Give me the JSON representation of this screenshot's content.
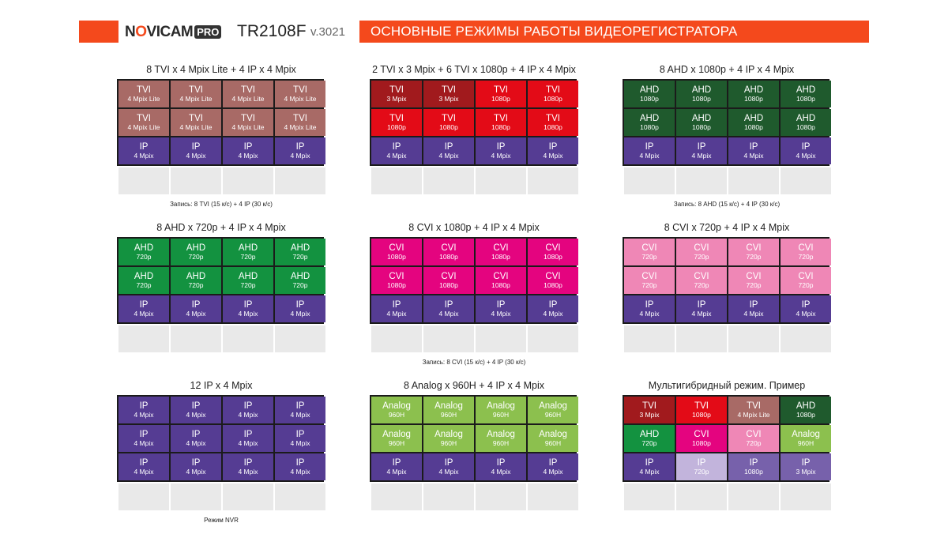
{
  "header": {
    "logo_prefix": "N",
    "logo_o": "O",
    "logo_rest": "VICAM",
    "logo_pro": "PRO",
    "model": "TR2108F",
    "version": "v.3021",
    "title": "ОСНОВНЫЕ РЕЖИМЫ РАБОТЫ ВИДЕОРЕГИСТРАТОРА"
  },
  "colors": {
    "accent": "#f4491c",
    "tvi_lite": "#a86a66",
    "tvi_red": "#e30b17",
    "tvi_dark": "#a11a1d",
    "ahd_dark": "#1f5a2d",
    "ahd_green": "#139240",
    "cvi_magenta": "#e4047f",
    "cvi_pink": "#ef87b6",
    "ip": "#553c93",
    "ip_light": "#c2b4dc",
    "ip_mid": "#7761ab",
    "analog": "#8cc04e",
    "empty": "#e9e9e9"
  },
  "panels": [
    {
      "title": "8 TVI x 4 Mpix Lite + 4 IP x 4 Mpix",
      "note": "Запись: 8 TVI (15 к/с) + 4 IP (30 к/с)",
      "rows": [
        [
          {
            "a": "TVI",
            "b": "4 Mpix Lite",
            "c": "tvi_lite"
          },
          {
            "a": "TVI",
            "b": "4 Mpix Lite",
            "c": "tvi_lite"
          },
          {
            "a": "TVI",
            "b": "4 Mpix Lite",
            "c": "tvi_lite"
          },
          {
            "a": "TVI",
            "b": "4 Mpix Lite",
            "c": "tvi_lite"
          }
        ],
        [
          {
            "a": "TVI",
            "b": "4 Mpix Lite",
            "c": "tvi_lite"
          },
          {
            "a": "TVI",
            "b": "4 Mpix Lite",
            "c": "tvi_lite"
          },
          {
            "a": "TVI",
            "b": "4 Mpix Lite",
            "c": "tvi_lite"
          },
          {
            "a": "TVI",
            "b": "4 Mpix Lite",
            "c": "tvi_lite"
          }
        ],
        [
          {
            "a": "IP",
            "b": "4 Mpix",
            "c": "ip"
          },
          {
            "a": "IP",
            "b": "4 Mpix",
            "c": "ip"
          },
          {
            "a": "IP",
            "b": "4 Mpix",
            "c": "ip"
          },
          {
            "a": "IP",
            "b": "4 Mpix",
            "c": "ip"
          }
        ]
      ]
    },
    {
      "title": "2 TVI x 3 Mpix + 6 TVI x 1080p + 4 IP x 4 Mpix",
      "note": "",
      "rows": [
        [
          {
            "a": "TVI",
            "b": "3 Mpix",
            "c": "tvi_dark"
          },
          {
            "a": "TVI",
            "b": "3 Mpix",
            "c": "tvi_dark"
          },
          {
            "a": "TVI",
            "b": "1080p",
            "c": "tvi_red"
          },
          {
            "a": "TVI",
            "b": "1080p",
            "c": "tvi_red"
          }
        ],
        [
          {
            "a": "TVI",
            "b": "1080p",
            "c": "tvi_red"
          },
          {
            "a": "TVI",
            "b": "1080p",
            "c": "tvi_red"
          },
          {
            "a": "TVI",
            "b": "1080p",
            "c": "tvi_red"
          },
          {
            "a": "TVI",
            "b": "1080p",
            "c": "tvi_red"
          }
        ],
        [
          {
            "a": "IP",
            "b": "4 Mpix",
            "c": "ip"
          },
          {
            "a": "IP",
            "b": "4 Mpix",
            "c": "ip"
          },
          {
            "a": "IP",
            "b": "4 Mpix",
            "c": "ip"
          },
          {
            "a": "IP",
            "b": "4 Mpix",
            "c": "ip"
          }
        ]
      ]
    },
    {
      "title": "8 AHD x 1080p + 4 IP x 4 Mpix",
      "note": "Запись: 8 AHD (15 к/с) + 4 IP (30 к/с)",
      "rows": [
        [
          {
            "a": "AHD",
            "b": "1080p",
            "c": "ahd_dark"
          },
          {
            "a": "AHD",
            "b": "1080p",
            "c": "ahd_dark"
          },
          {
            "a": "AHD",
            "b": "1080p",
            "c": "ahd_dark"
          },
          {
            "a": "AHD",
            "b": "1080p",
            "c": "ahd_dark"
          }
        ],
        [
          {
            "a": "AHD",
            "b": "1080p",
            "c": "ahd_dark"
          },
          {
            "a": "AHD",
            "b": "1080p",
            "c": "ahd_dark"
          },
          {
            "a": "AHD",
            "b": "1080p",
            "c": "ahd_dark"
          },
          {
            "a": "AHD",
            "b": "1080p",
            "c": "ahd_dark"
          }
        ],
        [
          {
            "a": "IP",
            "b": "4 Mpix",
            "c": "ip"
          },
          {
            "a": "IP",
            "b": "4 Mpix",
            "c": "ip"
          },
          {
            "a": "IP",
            "b": "4 Mpix",
            "c": "ip"
          },
          {
            "a": "IP",
            "b": "4 Mpix",
            "c": "ip"
          }
        ]
      ]
    },
    {
      "title": "8 AHD x 720p + 4 IP x 4 Mpix",
      "note": "",
      "rows": [
        [
          {
            "a": "AHD",
            "b": "720p",
            "c": "ahd_green"
          },
          {
            "a": "AHD",
            "b": "720p",
            "c": "ahd_green"
          },
          {
            "a": "AHD",
            "b": "720p",
            "c": "ahd_green"
          },
          {
            "a": "AHD",
            "b": "720p",
            "c": "ahd_green"
          }
        ],
        [
          {
            "a": "AHD",
            "b": "720p",
            "c": "ahd_green"
          },
          {
            "a": "AHD",
            "b": "720p",
            "c": "ahd_green"
          },
          {
            "a": "AHD",
            "b": "720p",
            "c": "ahd_green"
          },
          {
            "a": "AHD",
            "b": "720p",
            "c": "ahd_green"
          }
        ],
        [
          {
            "a": "IP",
            "b": "4 Mpix",
            "c": "ip"
          },
          {
            "a": "IP",
            "b": "4 Mpix",
            "c": "ip"
          },
          {
            "a": "IP",
            "b": "4 Mpix",
            "c": "ip"
          },
          {
            "a": "IP",
            "b": "4 Mpix",
            "c": "ip"
          }
        ]
      ]
    },
    {
      "title": "8 CVI x 1080p + 4 IP x 4 Mpix",
      "note": "Запись: 8 CVI (15 к/с) + 4 IP (30 к/с)",
      "rows": [
        [
          {
            "a": "CVI",
            "b": "1080p",
            "c": "cvi_magenta"
          },
          {
            "a": "CVI",
            "b": "1080p",
            "c": "cvi_magenta"
          },
          {
            "a": "CVI",
            "b": "1080p",
            "c": "cvi_magenta"
          },
          {
            "a": "CVI",
            "b": "1080p",
            "c": "cvi_magenta"
          }
        ],
        [
          {
            "a": "CVI",
            "b": "1080p",
            "c": "cvi_magenta"
          },
          {
            "a": "CVI",
            "b": "1080p",
            "c": "cvi_magenta"
          },
          {
            "a": "CVI",
            "b": "1080p",
            "c": "cvi_magenta"
          },
          {
            "a": "CVI",
            "b": "1080p",
            "c": "cvi_magenta"
          }
        ],
        [
          {
            "a": "IP",
            "b": "4 Mpix",
            "c": "ip"
          },
          {
            "a": "IP",
            "b": "4 Mpix",
            "c": "ip"
          },
          {
            "a": "IP",
            "b": "4 Mpix",
            "c": "ip"
          },
          {
            "a": "IP",
            "b": "4 Mpix",
            "c": "ip"
          }
        ]
      ]
    },
    {
      "title": "8 CVI x 720p + 4 IP x 4 Mpix",
      "note": "",
      "rows": [
        [
          {
            "a": "CVI",
            "b": "720p",
            "c": "cvi_pink"
          },
          {
            "a": "CVI",
            "b": "720p",
            "c": "cvi_pink"
          },
          {
            "a": "CVI",
            "b": "720p",
            "c": "cvi_pink"
          },
          {
            "a": "CVI",
            "b": "720p",
            "c": "cvi_pink"
          }
        ],
        [
          {
            "a": "CVI",
            "b": "720p",
            "c": "cvi_pink"
          },
          {
            "a": "CVI",
            "b": "720p",
            "c": "cvi_pink"
          },
          {
            "a": "CVI",
            "b": "720p",
            "c": "cvi_pink"
          },
          {
            "a": "CVI",
            "b": "720p",
            "c": "cvi_pink"
          }
        ],
        [
          {
            "a": "IP",
            "b": "4 Mpix",
            "c": "ip"
          },
          {
            "a": "IP",
            "b": "4 Mpix",
            "c": "ip"
          },
          {
            "a": "IP",
            "b": "4 Mpix",
            "c": "ip"
          },
          {
            "a": "IP",
            "b": "4 Mpix",
            "c": "ip"
          }
        ]
      ]
    },
    {
      "title": "12 IP x 4 Mpix",
      "note": "Режим NVR",
      "rows": [
        [
          {
            "a": "IP",
            "b": "4 Mpix",
            "c": "ip"
          },
          {
            "a": "IP",
            "b": "4 Mpix",
            "c": "ip"
          },
          {
            "a": "IP",
            "b": "4 Mpix",
            "c": "ip"
          },
          {
            "a": "IP",
            "b": "4 Mpix",
            "c": "ip"
          }
        ],
        [
          {
            "a": "IP",
            "b": "4 Mpix",
            "c": "ip"
          },
          {
            "a": "IP",
            "b": "4 Mpix",
            "c": "ip"
          },
          {
            "a": "IP",
            "b": "4 Mpix",
            "c": "ip"
          },
          {
            "a": "IP",
            "b": "4 Mpix",
            "c": "ip"
          }
        ],
        [
          {
            "a": "IP",
            "b": "4 Mpix",
            "c": "ip"
          },
          {
            "a": "IP",
            "b": "4 Mpix",
            "c": "ip"
          },
          {
            "a": "IP",
            "b": "4 Mpix",
            "c": "ip"
          },
          {
            "a": "IP",
            "b": "4 Mpix",
            "c": "ip"
          }
        ]
      ]
    },
    {
      "title": "8 Analog x 960H + 4 IP x 4 Mpix",
      "note": "",
      "rows": [
        [
          {
            "a": "Analog",
            "b": "960H",
            "c": "analog"
          },
          {
            "a": "Analog",
            "b": "960H",
            "c": "analog"
          },
          {
            "a": "Analog",
            "b": "960H",
            "c": "analog"
          },
          {
            "a": "Analog",
            "b": "960H",
            "c": "analog"
          }
        ],
        [
          {
            "a": "Analog",
            "b": "960H",
            "c": "analog"
          },
          {
            "a": "Analog",
            "b": "960H",
            "c": "analog"
          },
          {
            "a": "Analog",
            "b": "960H",
            "c": "analog"
          },
          {
            "a": "Analog",
            "b": "960H",
            "c": "analog"
          }
        ],
        [
          {
            "a": "IP",
            "b": "4 Mpix",
            "c": "ip"
          },
          {
            "a": "IP",
            "b": "4 Mpix",
            "c": "ip"
          },
          {
            "a": "IP",
            "b": "4 Mpix",
            "c": "ip"
          },
          {
            "a": "IP",
            "b": "4 Mpix",
            "c": "ip"
          }
        ]
      ]
    },
    {
      "title": "Мультигибридный режим. Пример",
      "note": "",
      "rows": [
        [
          {
            "a": "TVI",
            "b": "3 Mpix",
            "c": "tvi_dark"
          },
          {
            "a": "TVI",
            "b": "1080p",
            "c": "tvi_red"
          },
          {
            "a": "TVI",
            "b": "4 Mpix Lite",
            "c": "tvi_lite"
          },
          {
            "a": "AHD",
            "b": "1080p",
            "c": "ahd_dark"
          }
        ],
        [
          {
            "a": "AHD",
            "b": "720p",
            "c": "ahd_green"
          },
          {
            "a": "CVI",
            "b": "1080p",
            "c": "cvi_magenta"
          },
          {
            "a": "CVI",
            "b": "720p",
            "c": "cvi_pink"
          },
          {
            "a": "Analog",
            "b": "960H",
            "c": "analog"
          }
        ],
        [
          {
            "a": "IP",
            "b": "4 Mpix",
            "c": "ip"
          },
          {
            "a": "IP",
            "b": "720p",
            "c": "ip_light"
          },
          {
            "a": "IP",
            "b": "1080p",
            "c": "ip_mid"
          },
          {
            "a": "IP",
            "b": "3 Mpix",
            "c": "ip_mid"
          }
        ]
      ]
    }
  ]
}
